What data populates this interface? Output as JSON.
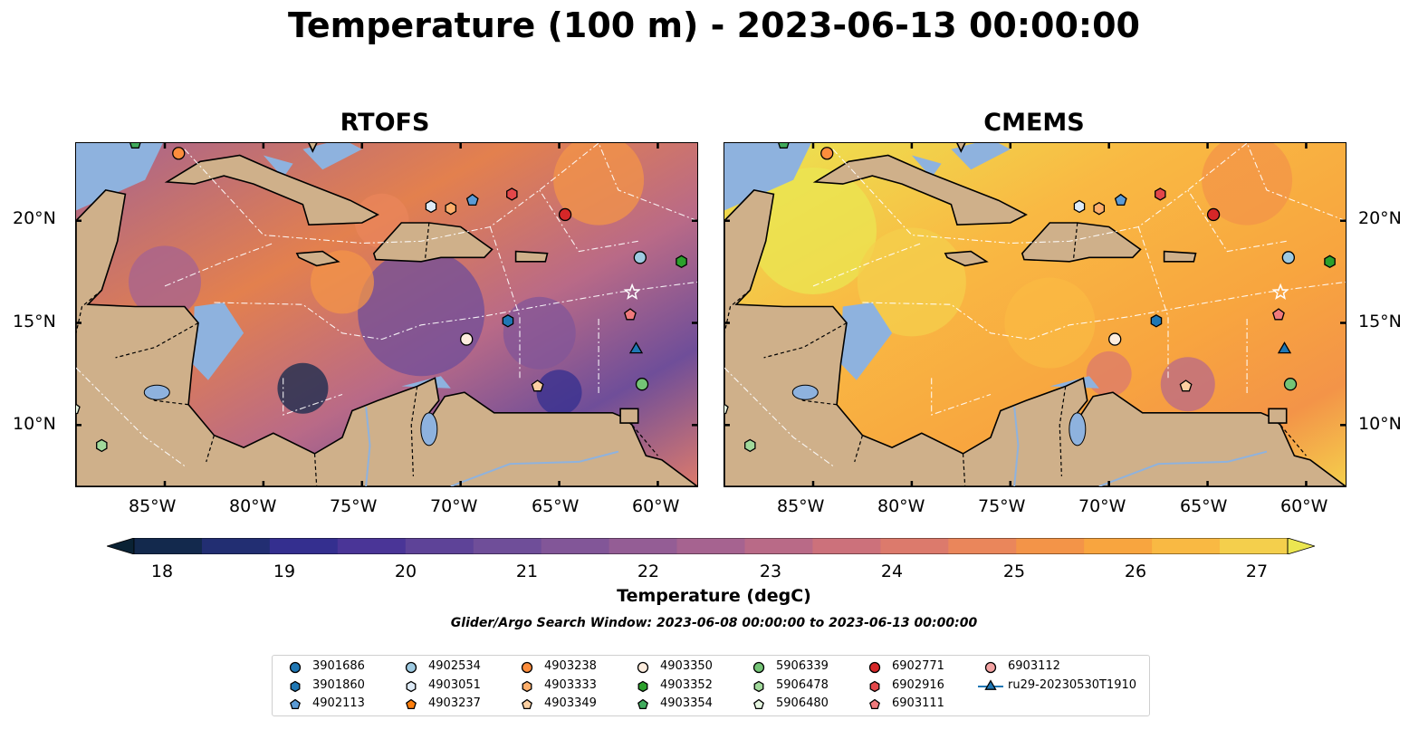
{
  "title": "Temperature (100 m) - 2023-06-13 00:00:00",
  "panels": [
    {
      "name": "RTOFS",
      "style": "rtofs"
    },
    {
      "name": "CMEMS",
      "style": "cmems"
    }
  ],
  "axes": {
    "lon_labels": [
      "85°W",
      "80°W",
      "75°W",
      "70°W",
      "65°W",
      "60°W"
    ],
    "lat_labels": [
      "20°N",
      "15°N",
      "10°N"
    ]
  },
  "colorbar": {
    "label": "Temperature (degC)",
    "ticks": [
      "18",
      "19",
      "20",
      "21",
      "22",
      "23",
      "24",
      "25",
      "26",
      "27"
    ],
    "range": [
      18,
      27
    ],
    "extend": "both",
    "colormap": "thermal",
    "colors": [
      "#0a2234",
      "#13294d",
      "#222e72",
      "#342f8f",
      "#4a3597",
      "#5e4398",
      "#6f4e99",
      "#825698",
      "#945d95",
      "#a66390",
      "#b96a87",
      "#cc717b",
      "#dc7a6c",
      "#ea865b",
      "#f39448",
      "#f8a53f",
      "#f9b943",
      "#f4cf4c",
      "#ebe651"
    ]
  },
  "search_window": "Glider/Argo Search Window: 2023-06-08 00:00:00 to 2023-06-13 00:00:00",
  "legend": [
    {
      "label": "3901686",
      "marker": "circle",
      "color": "#1f77b4"
    },
    {
      "label": "3901860",
      "marker": "hexagon",
      "color": "#1f77b4"
    },
    {
      "label": "4902113",
      "marker": "pentagon",
      "color": "#5b9bd5"
    },
    {
      "label": "4902534",
      "marker": "circle",
      "color": "#9ecae1"
    },
    {
      "label": "4903051",
      "marker": "hexagon",
      "color": "#deebf7"
    },
    {
      "label": "4903237",
      "marker": "pentagon",
      "color": "#ff7f0e"
    },
    {
      "label": "4903238",
      "marker": "circle",
      "color": "#fd8d3c"
    },
    {
      "label": "4903333",
      "marker": "hexagon",
      "color": "#fdae6b"
    },
    {
      "label": "4903349",
      "marker": "pentagon",
      "color": "#fdd0a2"
    },
    {
      "label": "4903350",
      "marker": "circle",
      "color": "#feedde"
    },
    {
      "label": "4903352",
      "marker": "hexagon",
      "color": "#2ca02c"
    },
    {
      "label": "4903354",
      "marker": "pentagon",
      "color": "#41ab5d"
    },
    {
      "label": "5906339",
      "marker": "circle",
      "color": "#74c476"
    },
    {
      "label": "5906478",
      "marker": "hexagon",
      "color": "#a1d99b"
    },
    {
      "label": "5906480",
      "marker": "pentagon",
      "color": "#e5f5e0"
    },
    {
      "label": "6902771",
      "marker": "circle",
      "color": "#d62728"
    },
    {
      "label": "6902916",
      "marker": "hexagon",
      "color": "#e3474a"
    },
    {
      "label": "6903111",
      "marker": "pentagon",
      "color": "#f07a7c"
    },
    {
      "label": "6903112",
      "marker": "circle",
      "color": "#f4a3a3"
    },
    {
      "label": "ru29-20230530T1910",
      "marker": "triangle",
      "color": "#1f77b4"
    }
  ],
  "map_data": {
    "lon_range": [
      -89.5,
      -58.0
    ],
    "lat_range": [
      7.0,
      23.8
    ],
    "floats": [
      {
        "id": "4903354",
        "lon": -86.5,
        "lat": 23.8
      },
      {
        "id": "4903238",
        "lon": -84.3,
        "lat": 23.3
      },
      {
        "id": "4903051",
        "lon": -71.5,
        "lat": 20.7
      },
      {
        "id": "4903333",
        "lon": -70.5,
        "lat": 20.6
      },
      {
        "id": "4902113",
        "lon": -69.4,
        "lat": 21.0
      },
      {
        "id": "6902916",
        "lon": -67.4,
        "lat": 21.3
      },
      {
        "id": "6902771",
        "lon": -64.7,
        "lat": 20.3
      },
      {
        "id": "4902534",
        "lon": -60.9,
        "lat": 18.2
      },
      {
        "id": "4903352",
        "lon": -58.8,
        "lat": 18.0
      },
      {
        "id": "3901860",
        "lon": -67.6,
        "lat": 15.1
      },
      {
        "id": "6903111",
        "lon": -61.4,
        "lat": 15.4
      },
      {
        "id": "4903350",
        "lon": -69.7,
        "lat": 14.2
      },
      {
        "id": "4903349",
        "lon": -66.1,
        "lat": 11.9
      },
      {
        "id": "5906339",
        "lon": -60.8,
        "lat": 12.0
      },
      {
        "id": "5906478",
        "lon": -88.2,
        "lat": 9.0
      },
      {
        "id": "5906480",
        "lon": -89.6,
        "lat": 10.8
      },
      {
        "id": "ru29-20230530T1910",
        "lon": -61.1,
        "lat": 13.7
      }
    ]
  }
}
